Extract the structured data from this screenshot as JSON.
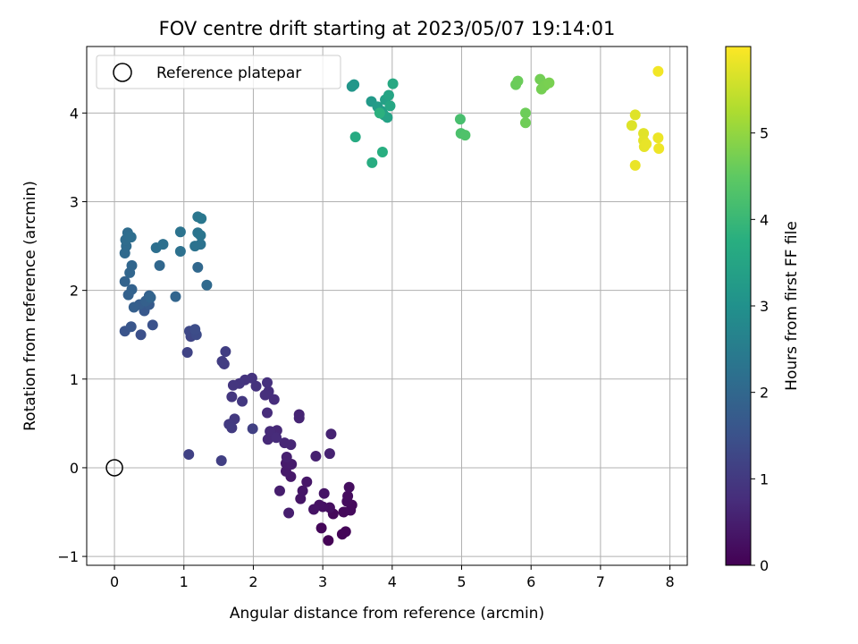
{
  "chart_data": {
    "type": "scatter",
    "title": "FOV centre drift starting at 2023/05/07 19:14:01",
    "xlabel": "Angular distance from reference (arcmin)",
    "ylabel": "Rotation from reference (arcmin)",
    "colorbar_label": "Hours from first FF file",
    "xlim": [
      -0.4,
      8.25
    ],
    "ylim": [
      -1.1,
      4.75
    ],
    "clim": [
      0,
      6.0
    ],
    "xticks": [
      "0",
      "1",
      "2",
      "3",
      "4",
      "5",
      "6",
      "7",
      "8"
    ],
    "yticks": [
      "−1",
      "0",
      "1",
      "2",
      "3",
      "4"
    ],
    "cticks": [
      "0",
      "1",
      "2",
      "3",
      "4",
      "5"
    ],
    "grid": true,
    "legend_position": "upper-left",
    "colormap": "viridis",
    "reference": {
      "label": "Reference platepar",
      "x": 0,
      "y": 0
    },
    "points": [
      [
        3.08,
        -0.82,
        0.02
      ],
      [
        3.28,
        -0.75,
        0.05
      ],
      [
        3.33,
        -0.72,
        0.07
      ],
      [
        2.98,
        -0.68,
        0.1
      ],
      [
        3.15,
        -0.52,
        0.12
      ],
      [
        3.3,
        -0.5,
        0.14
      ],
      [
        3.4,
        -0.48,
        0.15
      ],
      [
        3.42,
        -0.42,
        0.16
      ],
      [
        3.35,
        -0.38,
        0.18
      ],
      [
        3.36,
        -0.32,
        0.2
      ],
      [
        3.38,
        -0.22,
        0.22
      ],
      [
        3.1,
        -0.45,
        0.24
      ],
      [
        3.0,
        -0.44,
        0.26
      ],
      [
        2.95,
        -0.42,
        0.28
      ],
      [
        2.87,
        -0.47,
        0.3
      ],
      [
        3.02,
        -0.29,
        0.32
      ],
      [
        2.68,
        -0.35,
        0.34
      ],
      [
        2.71,
        -0.26,
        0.36
      ],
      [
        2.77,
        -0.16,
        0.38
      ],
      [
        2.54,
        -0.1,
        0.4
      ],
      [
        2.47,
        -0.04,
        0.42
      ],
      [
        2.47,
        0.05,
        0.44
      ],
      [
        2.55,
        0.04,
        0.46
      ],
      [
        2.38,
        -0.26,
        0.48
      ],
      [
        2.51,
        -0.51,
        0.5
      ],
      [
        2.48,
        0.12,
        0.52
      ],
      [
        2.9,
        0.13,
        0.54
      ],
      [
        3.1,
        0.16,
        0.56
      ],
      [
        3.12,
        0.38,
        0.58
      ],
      [
        2.66,
        0.6,
        0.6
      ],
      [
        2.66,
        0.56,
        0.62
      ],
      [
        2.54,
        0.26,
        0.64
      ],
      [
        2.45,
        0.28,
        0.66
      ],
      [
        2.34,
        0.42,
        0.68
      ],
      [
        2.21,
        0.32,
        0.7
      ],
      [
        2.24,
        0.41,
        0.72
      ],
      [
        2.33,
        0.34,
        0.74
      ],
      [
        2.2,
        0.62,
        0.76
      ],
      [
        2.3,
        0.77,
        0.78
      ],
      [
        2.22,
        0.86,
        0.8
      ],
      [
        2.17,
        0.82,
        0.82
      ],
      [
        2.2,
        0.96,
        0.84
      ],
      [
        2.04,
        0.92,
        0.86
      ],
      [
        1.98,
        1.01,
        0.88
      ],
      [
        1.88,
        0.99,
        0.9
      ],
      [
        1.8,
        0.95,
        0.92
      ],
      [
        1.71,
        0.93,
        0.94
      ],
      [
        1.69,
        0.8,
        0.96
      ],
      [
        1.84,
        0.75,
        0.98
      ],
      [
        1.73,
        0.55,
        1.0
      ],
      [
        1.65,
        0.49,
        1.02
      ],
      [
        1.69,
        0.45,
        1.04
      ],
      [
        1.58,
        1.17,
        1.06
      ],
      [
        1.55,
        1.2,
        1.08
      ],
      [
        1.6,
        1.31,
        1.1
      ],
      [
        1.54,
        0.08,
        1.12
      ],
      [
        1.99,
        0.44,
        1.14
      ],
      [
        1.07,
        0.15,
        1.16
      ],
      [
        1.05,
        1.3,
        1.2
      ],
      [
        1.1,
        1.48,
        1.25
      ],
      [
        1.08,
        1.54,
        1.3
      ],
      [
        1.18,
        1.5,
        1.35
      ],
      [
        1.16,
        1.56,
        1.4
      ],
      [
        0.38,
        1.5,
        1.45
      ],
      [
        0.55,
        1.61,
        1.5
      ],
      [
        0.15,
        1.54,
        1.55
      ],
      [
        0.24,
        1.59,
        1.6
      ],
      [
        0.43,
        1.77,
        1.65
      ],
      [
        0.5,
        1.84,
        1.7
      ],
      [
        0.36,
        1.84,
        1.75
      ],
      [
        0.28,
        1.81,
        1.8
      ],
      [
        0.45,
        1.88,
        1.82
      ],
      [
        0.5,
        1.94,
        1.84
      ],
      [
        0.2,
        1.95,
        1.86
      ],
      [
        0.25,
        2.01,
        1.88
      ],
      [
        0.15,
        2.1,
        1.9
      ],
      [
        0.52,
        1.92,
        1.92
      ],
      [
        0.88,
        1.93,
        1.94
      ],
      [
        0.22,
        2.2,
        1.96
      ],
      [
        0.25,
        2.28,
        1.98
      ],
      [
        0.65,
        2.28,
        2.0
      ],
      [
        1.2,
        2.26,
        2.02
      ],
      [
        1.33,
        2.06,
        2.04
      ],
      [
        0.15,
        2.42,
        2.06
      ],
      [
        0.17,
        2.5,
        2.08
      ],
      [
        0.16,
        2.57,
        2.1
      ],
      [
        0.19,
        2.65,
        2.12
      ],
      [
        0.21,
        2.61,
        2.14
      ],
      [
        0.24,
        2.6,
        2.16
      ],
      [
        0.6,
        2.48,
        2.18
      ],
      [
        0.7,
        2.52,
        2.2
      ],
      [
        0.95,
        2.44,
        2.22
      ],
      [
        1.16,
        2.5,
        2.24
      ],
      [
        1.24,
        2.52,
        2.26
      ],
      [
        0.95,
        2.66,
        2.28
      ],
      [
        1.2,
        2.65,
        2.3
      ],
      [
        1.24,
        2.62,
        2.32
      ],
      [
        1.2,
        2.83,
        2.34
      ],
      [
        1.25,
        2.81,
        2.36
      ],
      [
        3.42,
        4.3,
        3.1
      ],
      [
        3.45,
        4.32,
        3.15
      ],
      [
        3.7,
        4.13,
        3.2
      ],
      [
        3.79,
        4.07,
        3.25
      ],
      [
        3.85,
        4.02,
        3.3
      ],
      [
        3.88,
        3.98,
        3.35
      ],
      [
        3.9,
        4.15,
        3.4
      ],
      [
        3.93,
        3.95,
        3.45
      ],
      [
        3.95,
        4.2,
        3.5
      ],
      [
        3.97,
        4.08,
        3.55
      ],
      [
        4.01,
        4.33,
        3.6
      ],
      [
        3.47,
        3.73,
        3.65
      ],
      [
        3.71,
        3.44,
        3.7
      ],
      [
        3.86,
        3.56,
        3.75
      ],
      [
        3.82,
        4.0,
        3.8
      ],
      [
        4.98,
        3.93,
        4.2
      ],
      [
        4.99,
        3.77,
        4.25
      ],
      [
        5.05,
        3.75,
        4.3
      ],
      [
        5.78,
        4.32,
        4.6
      ],
      [
        5.81,
        4.36,
        4.62
      ],
      [
        5.92,
        4.0,
        4.64
      ],
      [
        5.92,
        3.89,
        4.66
      ],
      [
        6.13,
        4.38,
        4.7
      ],
      [
        6.15,
        4.27,
        4.72
      ],
      [
        6.2,
        4.31,
        4.74
      ],
      [
        6.26,
        4.34,
        4.76
      ],
      [
        7.45,
        3.86,
        5.7
      ],
      [
        7.5,
        3.98,
        5.72
      ],
      [
        7.62,
        3.77,
        5.74
      ],
      [
        7.62,
        3.69,
        5.76
      ],
      [
        7.63,
        3.62,
        5.78
      ],
      [
        7.66,
        3.65,
        5.8
      ],
      [
        7.5,
        3.41,
        5.82
      ],
      [
        7.83,
        3.72,
        5.84
      ],
      [
        7.84,
        3.6,
        5.86
      ],
      [
        7.83,
        4.47,
        5.9
      ]
    ]
  }
}
